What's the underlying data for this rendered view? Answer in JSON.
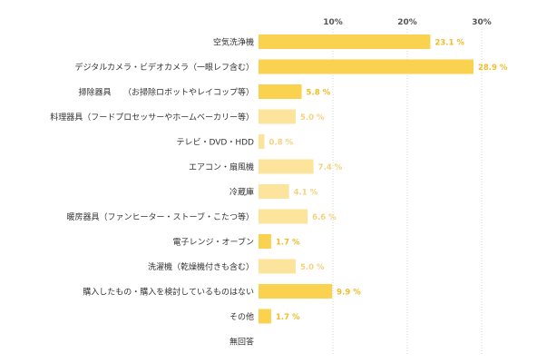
{
  "chart_data": {
    "type": "bar",
    "orientation": "horizontal",
    "categories": [
      "空気洗浄機",
      "デジタルカメラ・ビデオカメラ（一眼レフ含む）",
      "掃除器具　　（お掃除ロボットやレイコップ等）",
      "料理器具（フードプロセッサーやホームベーカリー等）",
      "テレビ・DVD・HDD",
      "エアコン・扇風機",
      "冷蔵庫",
      "暖房器具（ファンヒーター・ストーブ・こたつ等）",
      "電子レンジ・オーブン",
      "洗濯機（乾燥機付きも含む）",
      "購入したもの・購入を検討しているものはない",
      "その他",
      "無回答"
    ],
    "values": [
      23.1,
      28.9,
      5.8,
      5.0,
      0.8,
      7.4,
      4.1,
      6.6,
      1.7,
      5.0,
      9.9,
      1.7,
      0.0
    ],
    "value_labels": [
      "23.1 %",
      "28.9 %",
      "5.8 %",
      "5.0 %",
      "0.8 %",
      "7.4 %",
      "4.1 %",
      "6.6 %",
      "1.7 %",
      "5.0 %",
      "9.9 %",
      "1.7 %",
      ""
    ],
    "highlight": [
      true,
      true,
      true,
      false,
      false,
      false,
      false,
      false,
      true,
      false,
      true,
      true,
      false
    ],
    "x_ticks": [
      10,
      20,
      30
    ],
    "x_tick_labels": [
      "10%",
      "20%",
      "30%"
    ],
    "xlim": [
      0,
      30
    ],
    "grid": true,
    "title": "",
    "xlabel": "",
    "ylabel": "",
    "colors": {
      "bar_dark": "#fbd24f",
      "bar_light": "#fde49c",
      "label_dark": "#f0bc2a",
      "label_light": "#f5d27e"
    }
  }
}
